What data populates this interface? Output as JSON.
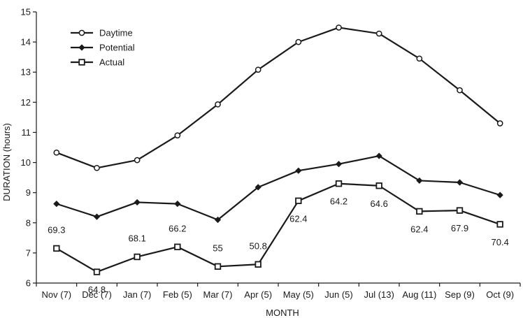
{
  "chart_data": {
    "type": "line",
    "title": "",
    "xlabel": "MONTH",
    "ylabel": "DURATION (hours)",
    "ylim": [
      6,
      15
    ],
    "yticks": [
      6,
      7,
      8,
      9,
      10,
      11,
      12,
      13,
      14,
      15
    ],
    "grid": false,
    "legend_position": "top-left",
    "categories": [
      "Nov (7)",
      "Dec (7)",
      "Jan (7)",
      "Feb (5)",
      "Mar (7)",
      "Apr (5)",
      "May (5)",
      "Jun (5)",
      "Jul (13)",
      "Aug (11)",
      "Sep (9)",
      "Oct (9)"
    ],
    "series": [
      {
        "name": "Daytime",
        "marker": "open-circle",
        "values": [
          10.33,
          9.82,
          10.08,
          10.9,
          11.93,
          13.08,
          14.0,
          14.48,
          14.28,
          13.45,
          12.4,
          11.3
        ]
      },
      {
        "name": "Potential",
        "marker": "filled-diamond",
        "values": [
          8.63,
          8.2,
          8.68,
          8.63,
          8.1,
          9.18,
          9.73,
          9.95,
          10.22,
          9.4,
          9.34,
          8.92
        ]
      },
      {
        "name": "Actual",
        "marker": "open-square",
        "values": [
          7.15,
          6.37,
          6.87,
          7.2,
          6.55,
          6.62,
          8.73,
          9.3,
          9.23,
          8.38,
          8.41,
          7.95
        ],
        "labels": [
          "69.3",
          "64.8",
          "68.1",
          "66.2",
          "55",
          "50.8",
          "62.4",
          "64.2",
          "64.6",
          "62.4",
          "67.9",
          "70.4"
        ],
        "label_position": [
          "above",
          "below",
          "above",
          "above",
          "above",
          "above",
          "below",
          "below",
          "below",
          "below",
          "below",
          "below"
        ]
      }
    ],
    "colors": {
      "line": "#1a1a1a",
      "marker_fill": "#ffffff"
    }
  }
}
